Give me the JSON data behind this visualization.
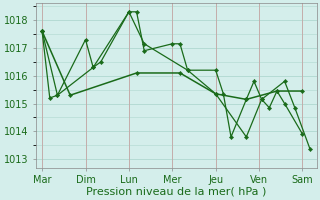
{
  "background_color": "#d4eeeb",
  "grid_color": "#b0d8d0",
  "line_color": "#1a6b1a",
  "marker_color": "#1a6b1a",
  "xlabel": "Pression niveau de la mer( hPa )",
  "xlabel_fontsize": 8,
  "ylim": [
    1012.7,
    1018.6
  ],
  "yticks": [
    1013,
    1014,
    1015,
    1016,
    1017,
    1018
  ],
  "day_labels": [
    "Mar",
    "Dim",
    "Lun",
    "Mer",
    "Jeu",
    "Ven",
    "Sam"
  ],
  "day_positions": [
    0,
    34,
    68,
    102,
    136,
    170,
    204
  ],
  "xlim": [
    -5,
    215
  ],
  "series1_x": [
    0,
    6,
    12,
    34,
    40,
    46,
    68,
    74,
    80,
    102,
    108,
    114,
    136,
    142,
    148,
    160,
    166,
    172,
    178,
    184,
    190,
    204
  ],
  "series1_y": [
    1017.6,
    1015.2,
    1015.3,
    1017.3,
    1016.3,
    1016.5,
    1018.3,
    1018.3,
    1016.9,
    1017.15,
    1017.15,
    1016.2,
    1016.2,
    1015.35,
    1013.8,
    1015.15,
    1015.8,
    1015.15,
    1014.85,
    1015.45,
    1015.0,
    1013.9
  ],
  "series2_x": [
    0,
    12,
    40,
    68,
    80,
    114,
    136,
    160,
    172,
    190,
    198,
    210
  ],
  "series2_y": [
    1017.6,
    1015.3,
    1016.3,
    1018.3,
    1017.15,
    1016.2,
    1015.35,
    1013.8,
    1015.15,
    1015.8,
    1014.85,
    1013.35
  ],
  "series3_x": [
    0,
    22,
    74,
    108,
    136,
    160,
    184,
    204
  ],
  "series3_y": [
    1017.6,
    1015.3,
    1016.1,
    1016.1,
    1015.35,
    1015.15,
    1015.45,
    1015.45
  ],
  "tick_label_fontsize": 7,
  "sep_color": "#cc9999",
  "sep_linewidth": 0.6
}
